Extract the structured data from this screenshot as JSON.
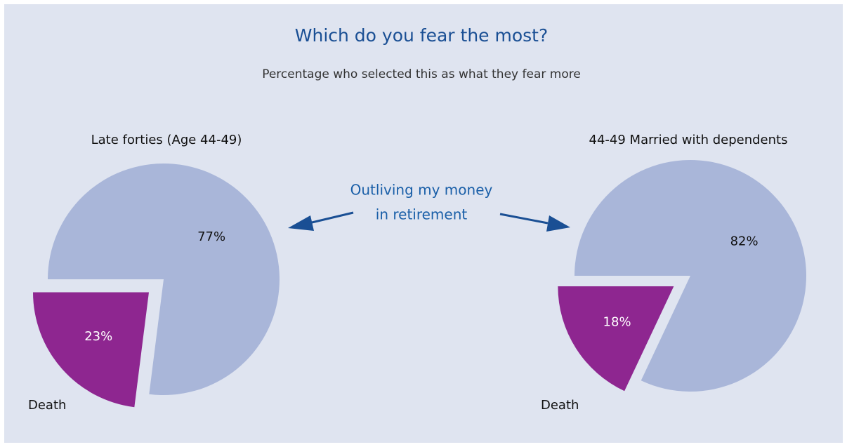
{
  "title": "Which do you fear the most?",
  "subtitle": "Percentage who selected this as what they fear more",
  "annotation": [
    "Outliving my money",
    "in retirement"
  ],
  "chart_data": [
    {
      "type": "pie",
      "title": "Late forties (Age 44-49)",
      "categories": [
        null,
        "Death"
      ],
      "values": [
        77,
        23
      ],
      "value_labels": [
        "77%",
        "23%"
      ],
      "colors": [
        "#a9b6d9",
        "#8e2690"
      ]
    },
    {
      "type": "pie",
      "title": "44-49 Married with dependents",
      "categories": [
        null,
        "Death"
      ],
      "values": [
        82,
        18
      ],
      "value_labels": [
        "82%",
        "18%"
      ],
      "colors": [
        "#a9b6d9",
        "#8e2690"
      ]
    }
  ]
}
